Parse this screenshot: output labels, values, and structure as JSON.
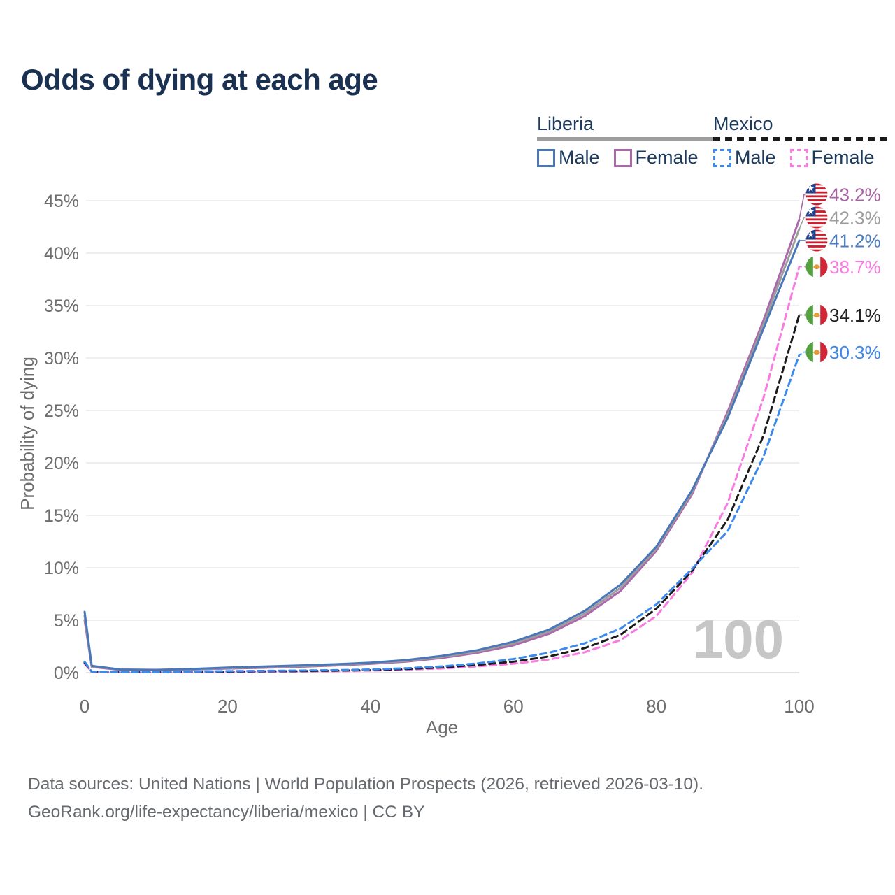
{
  "title": "Odds of dying at each age",
  "legend": {
    "groups": [
      {
        "name": "Liberia",
        "line_style": "solid",
        "underline_color": "#9e9e9e",
        "items": [
          {
            "label": "Male",
            "color": "#4a77b8"
          },
          {
            "label": "Female",
            "color": "#ab68ab"
          }
        ]
      },
      {
        "name": "Mexico",
        "line_style": "dashed",
        "underline_color": "#1b1b1b",
        "items": [
          {
            "label": "Male",
            "color": "#3b8aee"
          },
          {
            "label": "Female",
            "color": "#f97ae1"
          }
        ]
      }
    ]
  },
  "watermark": "100",
  "footer": {
    "line1": "Data sources: United Nations | World Population Prospects (2026, retrieved 2026-03-10).",
    "line2": "GeoRank.org/life-expectancy/liberia/mexico | CC BY"
  },
  "chart_data": {
    "type": "line",
    "title": "Odds of dying at each age",
    "xlabel": "Age",
    "ylabel": "Probability of dying",
    "xlim": [
      0,
      100
    ],
    "ylim": [
      0,
      45
    ],
    "x_ticks": [
      0,
      20,
      40,
      60,
      80,
      100
    ],
    "y_ticks": [
      0,
      5,
      10,
      15,
      20,
      25,
      30,
      35,
      40,
      45
    ],
    "y_tick_suffix": "%",
    "grid": "horizontal",
    "legend_position": "top-right",
    "ages": [
      0,
      1,
      5,
      10,
      15,
      20,
      25,
      30,
      35,
      40,
      45,
      50,
      55,
      60,
      65,
      70,
      75,
      80,
      85,
      90,
      95,
      100
    ],
    "series": [
      {
        "id": "liberia-female",
        "country": "Liberia",
        "sex": "Female",
        "flag": "liberia",
        "style": "solid",
        "color": "#ab68ab",
        "label_color": "#a763a1",
        "end_label": "43.2%",
        "end_value": 43.2,
        "values": [
          5.0,
          0.55,
          0.26,
          0.23,
          0.29,
          0.39,
          0.47,
          0.56,
          0.68,
          0.84,
          1.05,
          1.4,
          1.9,
          2.6,
          3.7,
          5.4,
          7.8,
          11.6,
          17.0,
          24.9,
          33.6,
          43.2
        ]
      },
      {
        "id": "liberia-total",
        "country": "Liberia",
        "sex": "Both",
        "flag": "liberia",
        "style": "solid",
        "color": "#9c9c9c",
        "label_color": "#9c9c9c",
        "end_label": "42.3%",
        "end_value": 42.3,
        "values": [
          5.4,
          0.6,
          0.28,
          0.25,
          0.32,
          0.44,
          0.53,
          0.62,
          0.74,
          0.9,
          1.12,
          1.5,
          2.02,
          2.78,
          3.9,
          5.65,
          8.1,
          11.8,
          17.2,
          24.6,
          33.2,
          42.3
        ]
      },
      {
        "id": "liberia-male",
        "country": "Liberia",
        "sex": "Male",
        "flag": "liberia",
        "style": "solid",
        "color": "#4a77b8",
        "label_color": "#4a7cc0",
        "end_label": "41.2%",
        "end_value": 41.2,
        "values": [
          5.8,
          0.65,
          0.3,
          0.27,
          0.35,
          0.48,
          0.58,
          0.68,
          0.8,
          0.95,
          1.2,
          1.6,
          2.15,
          2.95,
          4.1,
          5.9,
          8.4,
          12.0,
          17.4,
          24.3,
          32.8,
          41.2
        ]
      },
      {
        "id": "mexico-female",
        "country": "Mexico",
        "sex": "Female",
        "flag": "mexico",
        "style": "dashed",
        "color": "#f97ae1",
        "label_color": "#f97ae1",
        "end_label": "38.7%",
        "end_value": 38.7,
        "values": [
          0.85,
          0.08,
          0.03,
          0.03,
          0.05,
          0.07,
          0.09,
          0.11,
          0.14,
          0.19,
          0.28,
          0.4,
          0.6,
          0.85,
          1.25,
          1.95,
          3.1,
          5.4,
          9.5,
          16.2,
          26.2,
          38.7
        ]
      },
      {
        "id": "mexico-total",
        "country": "Mexico",
        "sex": "Both",
        "flag": "mexico",
        "style": "dashed",
        "color": "#1b1b1b",
        "label_color": "#222222",
        "end_label": "34.1%",
        "end_value": 34.1,
        "values": [
          0.95,
          0.09,
          0.035,
          0.035,
          0.07,
          0.1,
          0.13,
          0.15,
          0.19,
          0.25,
          0.35,
          0.5,
          0.73,
          1.05,
          1.55,
          2.35,
          3.6,
          6.1,
          9.7,
          14.6,
          22.6,
          34.1
        ]
      },
      {
        "id": "mexico-male",
        "country": "Mexico",
        "sex": "Male",
        "flag": "mexico",
        "style": "dashed",
        "color": "#3b8aee",
        "label_color": "#3d87e8",
        "end_label": "30.3%",
        "end_value": 30.3,
        "values": [
          1.05,
          0.1,
          0.04,
          0.04,
          0.09,
          0.14,
          0.17,
          0.2,
          0.24,
          0.3,
          0.42,
          0.6,
          0.88,
          1.3,
          1.9,
          2.8,
          4.2,
          6.5,
          9.9,
          13.5,
          20.6,
          30.3
        ]
      }
    ]
  }
}
